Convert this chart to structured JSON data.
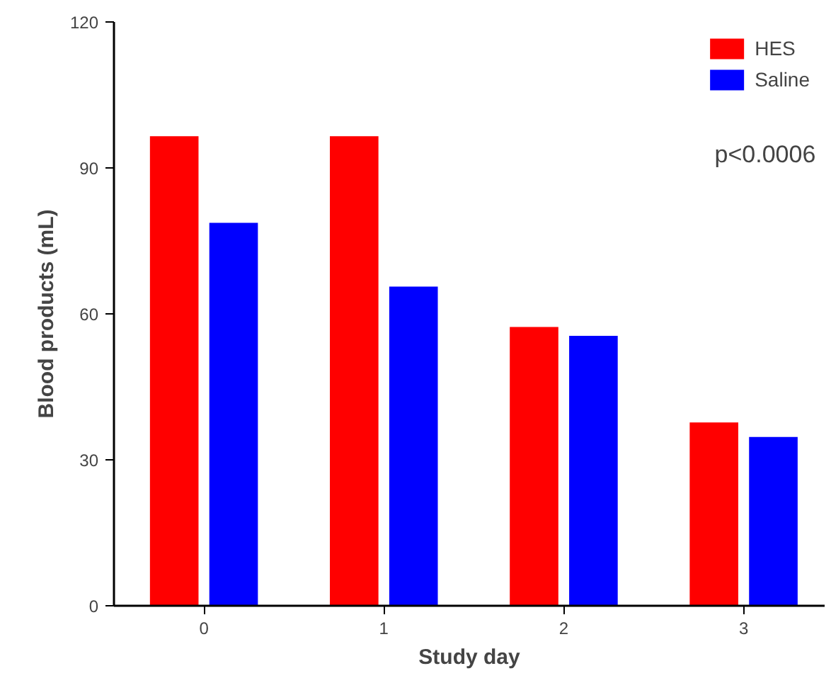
{
  "chart_data": {
    "type": "bar",
    "xlabel": "Study day",
    "ylabel": "Blood products (mL)",
    "categories": [
      "0",
      "1",
      "2",
      "3"
    ],
    "series": [
      {
        "name": "HES",
        "color": "#ff0000",
        "values": [
          96.5,
          96.5,
          57.3,
          37.7
        ]
      },
      {
        "name": "Saline",
        "color": "#0000ff",
        "values": [
          78.7,
          65.6,
          55.5,
          34.7
        ]
      }
    ],
    "ylim": [
      0,
      120
    ],
    "yticks": [
      0,
      30,
      60,
      90,
      120
    ],
    "grid": false,
    "legend": "top right",
    "annotations": [
      "p<0.0006"
    ]
  }
}
